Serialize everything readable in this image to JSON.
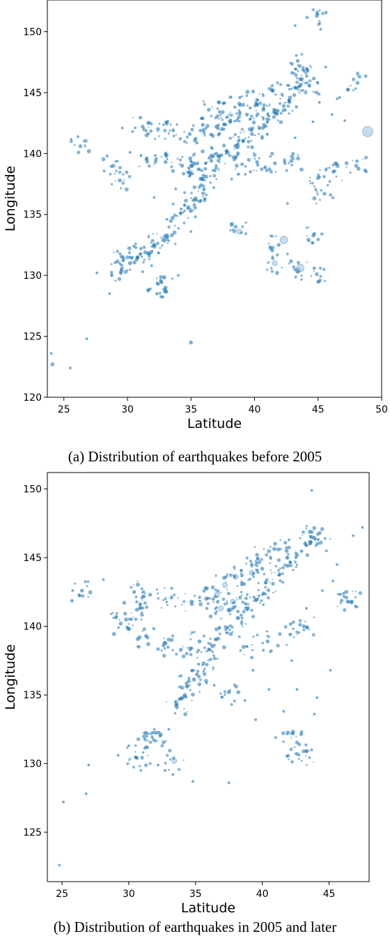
{
  "colors": {
    "point": "#1f77b4",
    "axis": "#000000",
    "background": "#ffffff"
  },
  "chart_data": [
    {
      "type": "scatter",
      "title": "",
      "caption": "(a) Distribution of earthquakes before 2005",
      "xlabel": "Latitude",
      "ylabel": "Longitude",
      "xlim": [
        23.7,
        50
      ],
      "ylim": [
        120,
        152.6
      ],
      "xticks": [
        25,
        30,
        35,
        40,
        45,
        50
      ],
      "yticks": [
        120,
        125,
        130,
        135,
        140,
        145,
        150
      ],
      "grid": false,
      "marker_alpha": 0.25,
      "note": "marker size proportional to magnitude; points shown are representative samples of dense cloud",
      "points": [
        [
          24.0,
          123.6,
          1
        ],
        [
          24.1,
          122.7,
          2
        ],
        [
          25.5,
          122.4,
          1
        ],
        [
          26.3,
          140.6,
          2
        ],
        [
          28.9,
          139.0,
          2
        ],
        [
          29.4,
          137.8,
          2
        ],
        [
          29.7,
          131.3,
          2
        ],
        [
          28.6,
          128.5,
          1
        ],
        [
          27.6,
          130.2,
          1
        ],
        [
          26.8,
          124.8,
          1
        ],
        [
          30.2,
          131.0,
          2
        ],
        [
          30.8,
          131.5,
          2
        ],
        [
          31.4,
          131.9,
          2
        ],
        [
          32.1,
          132.5,
          2
        ],
        [
          32.8,
          132.9,
          2
        ],
        [
          33.5,
          133.3,
          2
        ],
        [
          31.9,
          130.8,
          1
        ],
        [
          32.6,
          129.6,
          1
        ],
        [
          31.2,
          130.3,
          1
        ],
        [
          30.5,
          132.4,
          1
        ],
        [
          34.2,
          135.1,
          2
        ],
        [
          34.8,
          135.6,
          2
        ],
        [
          35.3,
          136.2,
          2
        ],
        [
          34.5,
          136.8,
          1
        ],
        [
          35.8,
          137.4,
          2
        ],
        [
          36.2,
          138.1,
          2
        ],
        [
          35.6,
          138.7,
          2
        ],
        [
          36.6,
          139.4,
          2
        ],
        [
          37.2,
          139.8,
          2
        ],
        [
          37.9,
          140.1,
          2
        ],
        [
          38.5,
          140.6,
          2
        ],
        [
          39.1,
          141.0,
          2
        ],
        [
          39.8,
          141.6,
          2
        ],
        [
          40.4,
          142.1,
          2
        ],
        [
          41.0,
          142.8,
          2
        ],
        [
          41.7,
          143.3,
          2
        ],
        [
          42.3,
          143.9,
          2
        ],
        [
          42.8,
          144.6,
          2
        ],
        [
          43.3,
          145.4,
          2
        ],
        [
          43.6,
          146.1,
          2
        ],
        [
          43.9,
          146.8,
          2
        ],
        [
          43.4,
          147.6,
          2
        ],
        [
          44.1,
          147.0,
          1
        ],
        [
          42.0,
          144.1,
          1
        ],
        [
          40.7,
          143.6,
          2
        ],
        [
          39.4,
          143.2,
          2
        ],
        [
          38.1,
          142.6,
          2
        ],
        [
          37.0,
          142.2,
          2
        ],
        [
          36.0,
          141.9,
          2
        ],
        [
          34.9,
          141.6,
          2
        ],
        [
          33.6,
          141.9,
          2
        ],
        [
          32.4,
          142.0,
          2
        ],
        [
          31.2,
          142.2,
          2
        ],
        [
          30.4,
          141.8,
          1
        ],
        [
          29.6,
          142.1,
          1
        ],
        [
          30.2,
          140.1,
          1
        ],
        [
          31.5,
          139.5,
          2
        ],
        [
          33.0,
          139.3,
          2
        ],
        [
          34.3,
          139.0,
          2
        ],
        [
          35.5,
          139.2,
          2
        ],
        [
          38.6,
          139.0,
          2
        ],
        [
          40.2,
          139.3,
          2
        ],
        [
          41.6,
          139.2,
          2
        ],
        [
          42.9,
          139.4,
          2
        ],
        [
          36.8,
          137.2,
          1
        ],
        [
          38.2,
          137.9,
          1
        ],
        [
          33.8,
          137.1,
          1
        ],
        [
          32.1,
          136.4,
          1
        ],
        [
          33.1,
          134.6,
          1
        ],
        [
          35.0,
          133.6,
          1
        ],
        [
          36.1,
          136.3,
          1
        ],
        [
          36.4,
          143.6,
          2
        ],
        [
          37.5,
          143.4,
          2
        ],
        [
          38.8,
          144.1,
          2
        ],
        [
          40.2,
          144.4,
          2
        ],
        [
          41.4,
          145.2,
          2
        ],
        [
          42.6,
          145.6,
          1
        ],
        [
          44.3,
          145.6,
          2
        ],
        [
          45.1,
          144.2,
          1
        ],
        [
          46.1,
          143.2,
          1
        ],
        [
          47.1,
          142.7,
          1
        ],
        [
          44.6,
          142.6,
          1
        ],
        [
          43.2,
          141.3,
          1
        ],
        [
          46.7,
          144.6,
          1
        ],
        [
          45.6,
          147.1,
          1
        ],
        [
          35.0,
          124.5,
          2
        ],
        [
          38.8,
          133.6,
          3
        ],
        [
          41.9,
          132.5,
          2
        ],
        [
          42.3,
          132.9,
          4
        ],
        [
          43.6,
          130.6,
          4
        ],
        [
          43.4,
          130.4,
          3
        ],
        [
          41.6,
          131.0,
          3
        ],
        [
          44.9,
          130.1,
          2
        ],
        [
          44.7,
          133.4,
          2
        ],
        [
          45.0,
          138.0,
          2
        ],
        [
          45.5,
          136.7,
          2
        ],
        [
          48.0,
          139.0,
          2
        ],
        [
          48.9,
          141.8,
          5
        ],
        [
          48.1,
          145.8,
          2
        ],
        [
          46.5,
          144.5,
          1
        ],
        [
          44.9,
          151.3,
          2
        ],
        [
          45.2,
          150.2,
          1
        ],
        [
          43.2,
          150.5,
          1
        ],
        [
          46.2,
          138.5,
          2
        ],
        [
          42.6,
          135.9,
          1
        ],
        [
          31.8,
          128.9,
          1
        ],
        [
          33.0,
          129.0,
          2
        ],
        [
          32.4,
          129.3,
          2
        ],
        [
          34.0,
          130.0,
          1
        ],
        [
          29.5,
          130.3,
          2
        ]
      ]
    },
    {
      "type": "scatter",
      "title": "",
      "caption": "(b) Distribution of earthquakes in 2005 and later",
      "xlabel": "Latitude",
      "ylabel": "Longitude",
      "xlim": [
        23.9,
        48.0
      ],
      "ylim": [
        121.4,
        151.2
      ],
      "xticks": [
        25,
        30,
        35,
        40,
        45
      ],
      "yticks": [
        125,
        130,
        135,
        140,
        145,
        150
      ],
      "grid": false,
      "marker_alpha": 0.25,
      "note": "marker size proportional to magnitude; points shown are representative samples of dense cloud",
      "points": [
        [
          24.8,
          122.6,
          1
        ],
        [
          25.1,
          127.2,
          1
        ],
        [
          26.8,
          127.8,
          1
        ],
        [
          27.0,
          129.9,
          1
        ],
        [
          25.8,
          142.6,
          1
        ],
        [
          26.5,
          142.6,
          2
        ],
        [
          28.1,
          143.4,
          1
        ],
        [
          29.8,
          140.5,
          2
        ],
        [
          29.4,
          140.2,
          2
        ],
        [
          29.2,
          130.6,
          1
        ],
        [
          30.0,
          131.3,
          1
        ],
        [
          30.6,
          130.4,
          2
        ],
        [
          31.3,
          131.2,
          2
        ],
        [
          31.9,
          131.7,
          2
        ],
        [
          32.4,
          132.1,
          2
        ],
        [
          33.0,
          132.5,
          1
        ],
        [
          31.6,
          130.0,
          1
        ],
        [
          30.9,
          129.5,
          1
        ],
        [
          32.2,
          129.9,
          1
        ],
        [
          33.4,
          130.2,
          3
        ],
        [
          33.6,
          134.1,
          2
        ],
        [
          34.2,
          135.0,
          2
        ],
        [
          34.5,
          136.0,
          2
        ],
        [
          35.1,
          136.5,
          2
        ],
        [
          35.6,
          137.3,
          2
        ],
        [
          36.0,
          138.3,
          2
        ],
        [
          36.7,
          139.1,
          2
        ],
        [
          37.4,
          139.9,
          2
        ],
        [
          38.2,
          140.6,
          2
        ],
        [
          38.8,
          141.3,
          2
        ],
        [
          39.5,
          141.9,
          2
        ],
        [
          40.1,
          142.4,
          2
        ],
        [
          40.8,
          143.1,
          2
        ],
        [
          41.3,
          143.8,
          2
        ],
        [
          41.9,
          144.4,
          2
        ],
        [
          42.6,
          145.2,
          2
        ],
        [
          43.3,
          145.9,
          2
        ],
        [
          43.7,
          146.5,
          2
        ],
        [
          44.3,
          146.8,
          2
        ],
        [
          44.7,
          146.4,
          1
        ],
        [
          36.6,
          142.3,
          3
        ],
        [
          37.2,
          143.0,
          3
        ],
        [
          38.0,
          143.6,
          3
        ],
        [
          39.2,
          143.9,
          3
        ],
        [
          37.8,
          141.8,
          3
        ],
        [
          36.9,
          141.3,
          3
        ],
        [
          35.8,
          142.0,
          2
        ],
        [
          34.7,
          141.8,
          2
        ],
        [
          33.2,
          142.1,
          2
        ],
        [
          31.6,
          142.3,
          2
        ],
        [
          30.4,
          142.5,
          2
        ],
        [
          30.6,
          141.2,
          2
        ],
        [
          31.3,
          139.3,
          2
        ],
        [
          32.6,
          138.6,
          2
        ],
        [
          33.9,
          138.3,
          2
        ],
        [
          35.3,
          138.9,
          2
        ],
        [
          38.6,
          138.5,
          2
        ],
        [
          40.4,
          138.9,
          2
        ],
        [
          42.1,
          139.4,
          2
        ],
        [
          43.1,
          140.0,
          2
        ],
        [
          37.5,
          135.2,
          2
        ],
        [
          37.7,
          134.3,
          1
        ],
        [
          36.4,
          135.7,
          1
        ],
        [
          39.3,
          136.8,
          1
        ],
        [
          42.2,
          137.5,
          1
        ],
        [
          43.3,
          141.3,
          1
        ],
        [
          44.5,
          142.6,
          1
        ],
        [
          45.3,
          143.3,
          1
        ],
        [
          45.6,
          144.5,
          1
        ],
        [
          46.4,
          141.8,
          2
        ],
        [
          46.7,
          141.8,
          2
        ],
        [
          43.7,
          149.9,
          1
        ],
        [
          44.8,
          145.5,
          1
        ],
        [
          46.8,
          146.6,
          1
        ],
        [
          47.5,
          147.2,
          1
        ],
        [
          42.6,
          130.7,
          2
        ],
        [
          43.1,
          130.9,
          2
        ],
        [
          43.7,
          131.0,
          1
        ],
        [
          42.3,
          132.2,
          2
        ],
        [
          41.0,
          131.9,
          1
        ],
        [
          43.9,
          133.6,
          1
        ],
        [
          42.6,
          135.4,
          1
        ],
        [
          44.1,
          134.8,
          1
        ],
        [
          45.1,
          136.8,
          1
        ],
        [
          40.5,
          135.4,
          1
        ],
        [
          39.5,
          133.2,
          1
        ],
        [
          38.7,
          134.6,
          1
        ],
        [
          37.5,
          128.6,
          1
        ],
        [
          34.8,
          128.7,
          1
        ],
        [
          33.3,
          129.2,
          1
        ],
        [
          41.6,
          133.8,
          1
        ],
        [
          40.0,
          144.2,
          2
        ],
        [
          41.2,
          145.6,
          2
        ],
        [
          42.0,
          146.3,
          1
        ],
        [
          39.6,
          145.2,
          2
        ]
      ]
    }
  ]
}
